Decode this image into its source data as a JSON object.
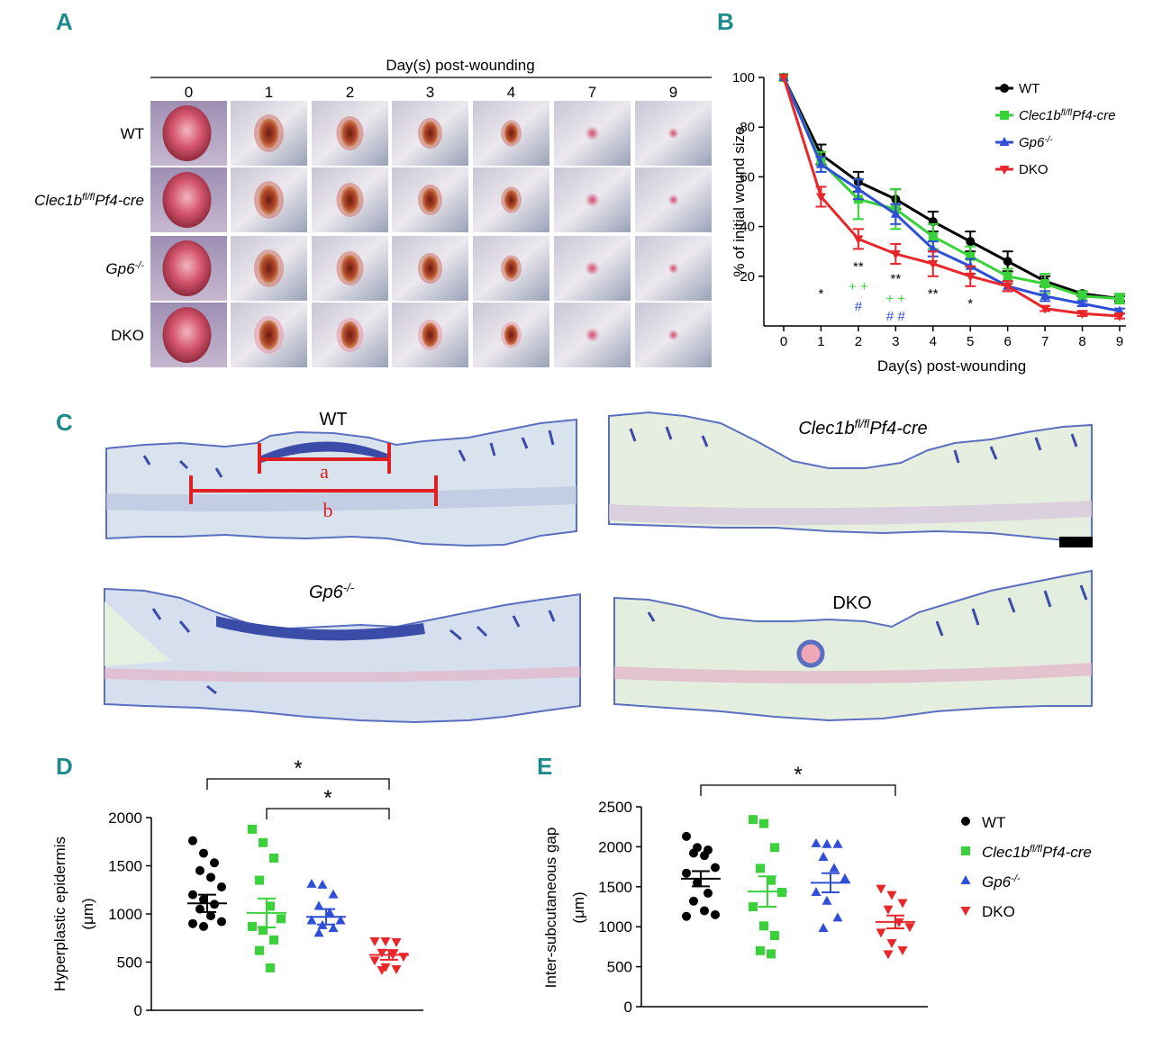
{
  "panels": {
    "A": "A",
    "B": "B",
    "C": "C",
    "D": "D",
    "E": "E"
  },
  "panel_a": {
    "header": "Day(s) post-wounding",
    "days": [
      "0",
      "1",
      "2",
      "3",
      "4",
      "7",
      "9"
    ],
    "rows": [
      {
        "base": "WT",
        "sup": "",
        "tail": "",
        "italic": false
      },
      {
        "base": "Clec1b",
        "sup": "fl/fl",
        "tail": "Pf4-cre",
        "italic": true
      },
      {
        "base": "Gp6",
        "sup": "-/-",
        "tail": "",
        "italic": true
      },
      {
        "base": "DKO",
        "sup": "",
        "tail": "",
        "italic": false
      }
    ]
  },
  "panel_c": {
    "labels": [
      {
        "base": "WT",
        "sup": "",
        "tail": "",
        "italic": false
      },
      {
        "base": "Clec1b",
        "sup": "fl/fl",
        "tail": "Pf4-cre",
        "italic": true
      },
      {
        "base": "Gp6",
        "sup": "-/-",
        "tail": "",
        "italic": true
      },
      {
        "base": "DKO",
        "sup": "",
        "tail": "",
        "italic": false
      }
    ],
    "measure_a": "a",
    "measure_b": "b"
  },
  "colors": {
    "teal": "#1f8a8c",
    "wt": "#000000",
    "clec": "#3ad23a",
    "gp6": "#2f4fd6",
    "dko": "#e8272a",
    "scale_red": "#e02020",
    "tissue_bg": "#dbe6ee",
    "tissue_blue": "#5b6fc0"
  },
  "chart_data": [
    {
      "id": "B",
      "type": "line",
      "xlabel": "Day(s) post-wounding",
      "ylabel": "% of initial wound size",
      "x": [
        0,
        1,
        2,
        3,
        4,
        5,
        6,
        7,
        8,
        9
      ],
      "xlim": [
        0,
        9
      ],
      "ylim": [
        0,
        100
      ],
      "yticks": [
        20,
        40,
        60,
        80,
        100
      ],
      "legend_position": "top-right",
      "series": [
        {
          "name": "WT",
          "marker": "circle",
          "color": "#000000",
          "values": [
            100,
            69,
            58,
            51,
            42,
            34,
            26,
            18,
            13,
            11
          ],
          "errors": [
            0,
            4,
            4,
            4,
            4,
            4,
            4,
            2,
            1,
            1
          ]
        },
        {
          "name": "Clec1b fl/fl Pf4-cre",
          "marker": "square",
          "color": "#3ad23a",
          "values": [
            100,
            66,
            51,
            47,
            36,
            28,
            20,
            17,
            12,
            11
          ],
          "errors": [
            0,
            4,
            8,
            8,
            5,
            4,
            3,
            4,
            2,
            2
          ]
        },
        {
          "name": "Gp6 -/-",
          "marker": "triangle-up",
          "color": "#2f4fd6",
          "values": [
            100,
            65,
            55,
            45,
            31,
            24,
            16,
            12,
            9,
            6
          ],
          "errors": [
            0,
            3,
            4,
            4,
            3,
            3,
            2,
            2,
            1,
            1
          ]
        },
        {
          "name": "DKO",
          "marker": "triangle-down",
          "color": "#e8272a",
          "values": [
            100,
            52,
            35,
            29,
            25,
            20,
            16,
            7,
            5,
            4
          ],
          "errors": [
            0,
            4,
            4,
            4,
            5,
            4,
            2,
            1,
            1,
            1
          ]
        }
      ],
      "annotations": [
        {
          "x": 1,
          "y": 13,
          "text": "*",
          "color": "#000000"
        },
        {
          "x": 2,
          "y": 24,
          "text": "**",
          "color": "#000000"
        },
        {
          "x": 2,
          "y": 16,
          "text": "+ +",
          "color": "#3ad23a"
        },
        {
          "x": 2,
          "y": 8,
          "text": "#",
          "color": "#2f4fd6"
        },
        {
          "x": 3,
          "y": 19,
          "text": "**",
          "color": "#000000"
        },
        {
          "x": 3,
          "y": 11,
          "text": "+ +",
          "color": "#3ad23a"
        },
        {
          "x": 3,
          "y": 4,
          "text": "# #",
          "color": "#2f4fd6"
        },
        {
          "x": 4,
          "y": 13,
          "text": "**",
          "color": "#000000"
        },
        {
          "x": 5,
          "y": 9,
          "text": "*",
          "color": "#000000"
        }
      ]
    },
    {
      "id": "D",
      "type": "scatter",
      "ylabel_lines": [
        "Hyperplastic epidermis",
        "(μm)"
      ],
      "categories": [
        "WT",
        "Clec1b fl/fl Pf4-cre",
        "Gp6 -/-",
        "DKO"
      ],
      "ylim": [
        0,
        2000
      ],
      "yticks": [
        0,
        500,
        1000,
        1500,
        2000
      ],
      "series": [
        {
          "name": "WT",
          "marker": "circle",
          "color": "#000000",
          "mean": 1110,
          "sem": 90,
          "values": [
            1760,
            1630,
            1530,
            1450,
            1380,
            1280,
            1200,
            1150,
            1100,
            1050,
            980,
            920,
            900,
            870
          ]
        },
        {
          "name": "Clec1b fl/fl Pf4-cre",
          "marker": "square",
          "color": "#3ad23a",
          "mean": 1010,
          "sem": 150,
          "values": [
            1880,
            1740,
            1580,
            1350,
            1080,
            950,
            870,
            830,
            730,
            620,
            440
          ]
        },
        {
          "name": "Gp6 -/-",
          "marker": "triangle-up",
          "color": "#2f4fd6",
          "mean": 970,
          "sem": 80,
          "values": [
            1310,
            1300,
            1200,
            1080,
            1010,
            930,
            930,
            880,
            850,
            800
          ]
        },
        {
          "name": "DKO",
          "marker": "triangle-down",
          "color": "#e8272a",
          "mean": 575,
          "sem": 50,
          "values": [
            720,
            720,
            710,
            600,
            580,
            560,
            520,
            450,
            430,
            420
          ]
        }
      ],
      "significance": [
        {
          "from": 0,
          "to": 3,
          "text": "*"
        },
        {
          "from": 1,
          "to": 3,
          "text": "*"
        }
      ]
    },
    {
      "id": "E",
      "type": "scatter",
      "ylabel": "Inter-subcutaneous gap",
      "ylabel_unit": "(μm)",
      "categories": [
        "WT",
        "Clec1b fl/fl Pf4-cre",
        "Gp6 -/-",
        "DKO"
      ],
      "ylim": [
        0,
        2500
      ],
      "yticks": [
        0,
        500,
        1000,
        1500,
        2000,
        2500
      ],
      "legend_position": "right",
      "legend": [
        {
          "base": "WT",
          "sup": "",
          "tail": "",
          "italic": false
        },
        {
          "base": "Clec1b",
          "sup": "fl/fl",
          "tail": "Pf4-cre",
          "italic": true
        },
        {
          "base": "Gp6",
          "sup": "-/-",
          "tail": "",
          "italic": true
        },
        {
          "base": "DKO",
          "sup": "",
          "tail": "",
          "italic": false
        }
      ],
      "series": [
        {
          "name": "WT",
          "marker": "circle",
          "color": "#000000",
          "mean": 1600,
          "sem": 95,
          "values": [
            2130,
            1990,
            1960,
            1920,
            1890,
            1740,
            1670,
            1550,
            1420,
            1320,
            1200,
            1150,
            1130
          ]
        },
        {
          "name": "Clec1b fl/fl Pf4-cre",
          "marker": "square",
          "color": "#3ad23a",
          "mean": 1440,
          "sem": 190,
          "values": [
            2340,
            2290,
            1990,
            1730,
            1580,
            1430,
            1250,
            1010,
            890,
            700,
            660
          ]
        },
        {
          "name": "Gp6 -/-",
          "marker": "triangle-up",
          "color": "#2f4fd6",
          "mean": 1550,
          "sem": 120,
          "values": [
            2040,
            2030,
            2030,
            1870,
            1730,
            1600,
            1430,
            1320,
            1110,
            980
          ]
        },
        {
          "name": "DKO",
          "marker": "triangle-down",
          "color": "#e8272a",
          "mean": 1060,
          "sem": 80,
          "values": [
            1480,
            1400,
            1300,
            1220,
            1060,
            1000,
            930,
            800,
            710,
            660
          ]
        }
      ],
      "significance": [
        {
          "from": 0,
          "to": 3,
          "text": "*"
        }
      ]
    }
  ]
}
